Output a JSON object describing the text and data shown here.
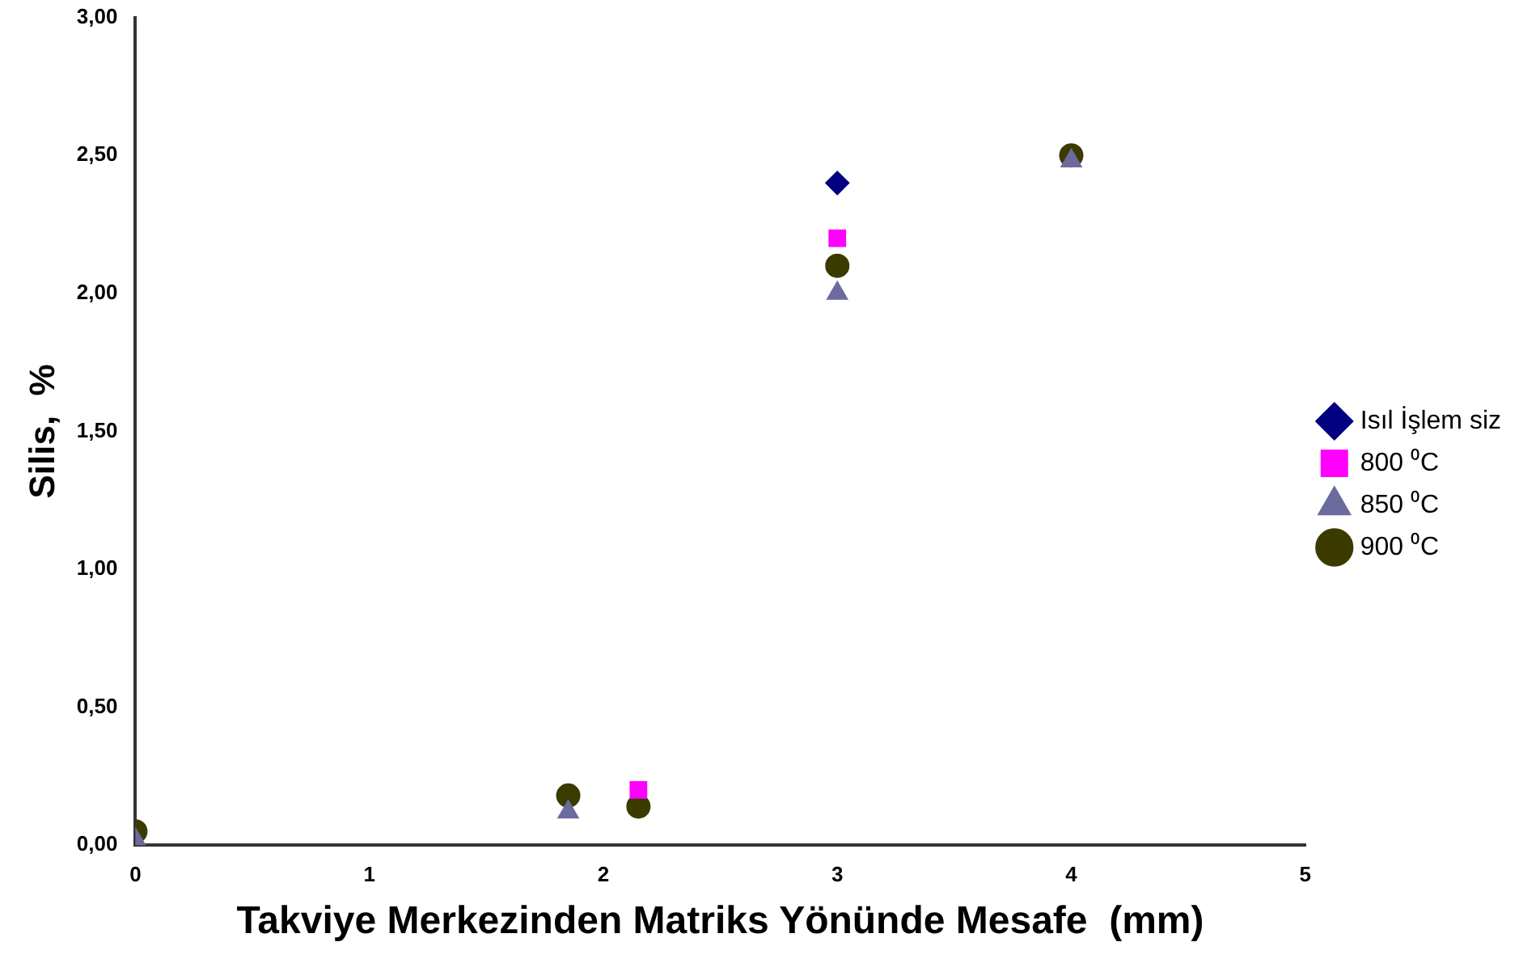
{
  "chart_data": {
    "type": "scatter",
    "xlabel": "Takviye Merkezinden Matriks Yönünde Mesafe  (mm)",
    "ylabel": "Silis,  %",
    "xlim": [
      0,
      5
    ],
    "xticks": [
      0,
      1,
      2,
      3,
      4,
      5
    ],
    "ylim": [
      0,
      3
    ],
    "yticks": [
      {
        "value": 0,
        "label": "0,00"
      },
      {
        "value": 0.5,
        "label": "0,50"
      },
      {
        "value": 1,
        "label": "1,00"
      },
      {
        "value": 1.5,
        "label": "1,50"
      },
      {
        "value": 2,
        "label": "2,00"
      },
      {
        "value": 2.5,
        "label": "2,50"
      },
      {
        "value": 3,
        "label": "3,00"
      }
    ],
    "grid": false,
    "legend": "right",
    "series": [
      {
        "name": "Isıl İşlem siz",
        "color": "#000080",
        "marker": "diamond",
        "x": [
          3
        ],
        "values": [
          2.4
        ]
      },
      {
        "name": "800 ⁰C",
        "color": "#ff00ff",
        "marker": "square",
        "x": [
          2.15,
          3
        ],
        "values": [
          0.2,
          2.2
        ]
      },
      {
        "name": "850 ⁰C",
        "color": "#6b6b9e",
        "marker": "triangle",
        "x": [
          0,
          1.85,
          3,
          4
        ],
        "values": [
          0.02,
          0.12,
          2.0,
          2.48
        ]
      },
      {
        "name": "900 ⁰C",
        "color": "#3b3b00",
        "marker": "circle",
        "x": [
          0,
          1.85,
          2.15,
          3,
          4
        ],
        "values": [
          0.05,
          0.18,
          0.14,
          2.1,
          2.5
        ]
      }
    ]
  }
}
